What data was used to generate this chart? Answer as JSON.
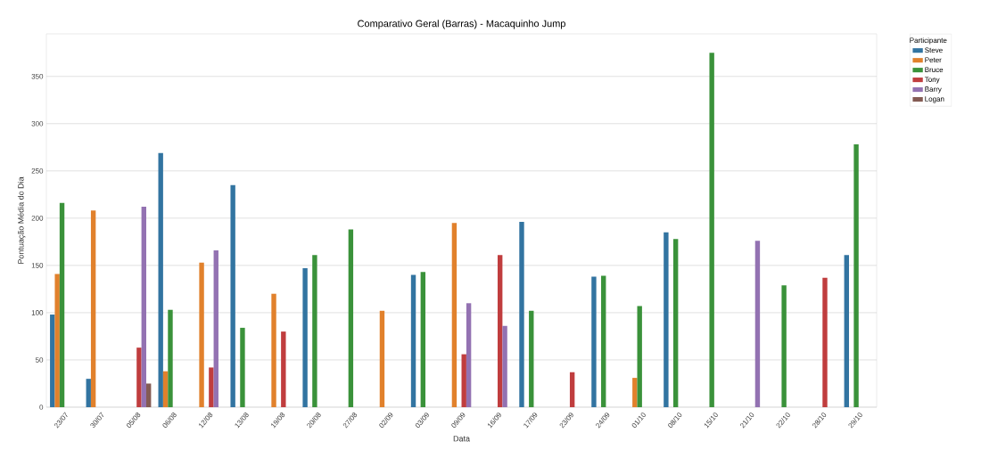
{
  "chart_data": {
    "type": "bar",
    "title": "Comparativo Geral (Barras) - Macaquinho Jump",
    "xlabel": "Data",
    "ylabel": "Pontuação Média do Dia",
    "legend_title": "Participante",
    "categories": [
      "23/07",
      "30/07",
      "05/08",
      "06/08",
      "12/08",
      "13/08",
      "19/08",
      "20/08",
      "27/08",
      "02/09",
      "03/09",
      "09/09",
      "16/09",
      "17/09",
      "23/09",
      "24/09",
      "01/10",
      "08/10",
      "15/10",
      "21/10",
      "22/10",
      "28/10",
      "29/10"
    ],
    "series": [
      {
        "name": "Steve",
        "color": "#3274a1",
        "values": [
          98,
          30,
          null,
          269,
          null,
          235,
          null,
          147,
          null,
          null,
          140,
          null,
          null,
          196,
          null,
          138,
          null,
          185,
          null,
          null,
          null,
          null,
          161
        ]
      },
      {
        "name": "Peter",
        "color": "#e1812c",
        "values": [
          141,
          208,
          null,
          38,
          153,
          null,
          120,
          null,
          null,
          102,
          null,
          195,
          null,
          null,
          null,
          null,
          31,
          null,
          null,
          null,
          null,
          null,
          null
        ]
      },
      {
        "name": "Bruce",
        "color": "#3a923a",
        "values": [
          216,
          null,
          null,
          103,
          null,
          84,
          null,
          161,
          188,
          null,
          143,
          null,
          null,
          102,
          null,
          139,
          107,
          178,
          375,
          null,
          129,
          null,
          278
        ]
      },
      {
        "name": "Tony",
        "color": "#c03d3e",
        "values": [
          null,
          null,
          63,
          null,
          42,
          null,
          80,
          null,
          null,
          null,
          null,
          56,
          161,
          null,
          37,
          null,
          null,
          null,
          null,
          null,
          null,
          137,
          null
        ]
      },
      {
        "name": "Barry",
        "color": "#9372b2",
        "values": [
          null,
          null,
          212,
          null,
          166,
          null,
          null,
          null,
          null,
          null,
          null,
          110,
          86,
          null,
          null,
          null,
          null,
          null,
          null,
          176,
          null,
          null,
          null
        ]
      },
      {
        "name": "Logan",
        "color": "#845b53",
        "values": [
          null,
          null,
          25,
          null,
          null,
          null,
          null,
          null,
          null,
          null,
          null,
          null,
          null,
          null,
          null,
          null,
          null,
          null,
          null,
          null,
          null,
          null,
          null
        ]
      }
    ],
    "ylim": [
      0,
      395
    ],
    "yticks": [
      0,
      50,
      100,
      150,
      200,
      250,
      300,
      350
    ],
    "grid": "y",
    "legend": "top right"
  }
}
